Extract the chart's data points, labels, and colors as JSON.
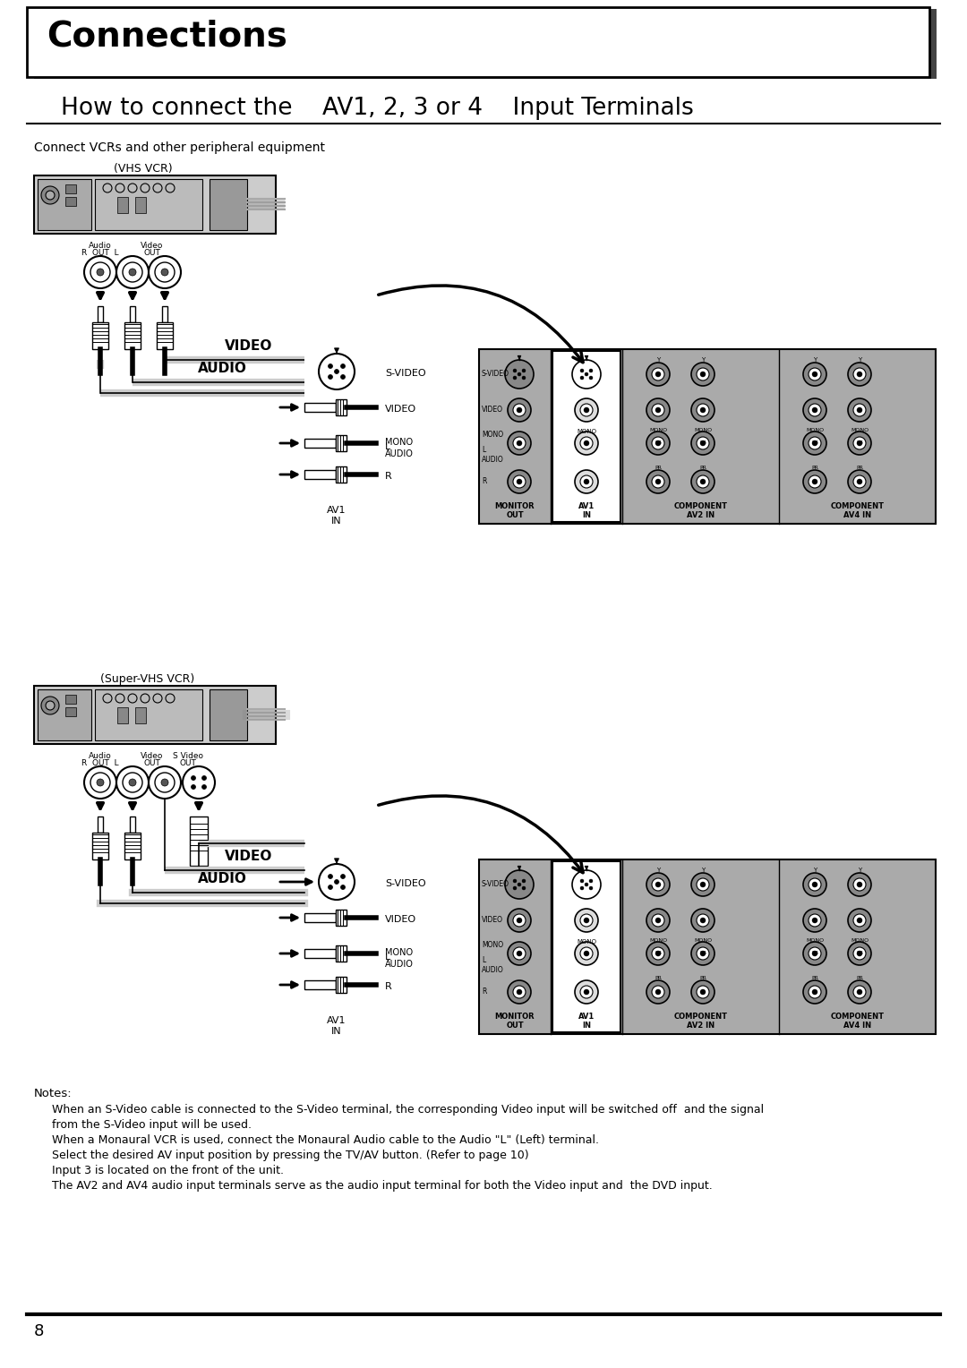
{
  "title_box_text": "Connections",
  "subtitle_text": "How to connect the    AV1, 2, 3 or 4    Input Terminals",
  "body_intro": "Connect VCRs and other peripheral equipment",
  "vcr1_label": "(VHS VCR)",
  "vcr2_label": "(Super-VHS VCR)",
  "video_label": "VIDEO",
  "audio_label": "AUDIO",
  "av1_in_label": "AV1\nIN",
  "svideo_label": "S-VIDEO",
  "video_conn_label": "VIDEO",
  "mono_label": "MONO",
  "notes_title": "Notes:",
  "notes": [
    "When an S-Video cable is connected to the S-Video terminal, the corresponding Video input will be switched off  and the signal",
    "from the S-Video input will be used.",
    "When a Monaural VCR is used, connect the Monaural Audio cable to the Audio \"L\" (Left) terminal.",
    "Select the desired AV input position by pressing the TV/AV button. (Refer to page 10)",
    "Input 3 is located on the front of the unit.",
    "The AV2 and AV4 audio input terminals serve as the audio input terminal for both the Video input and  the DVD input."
  ],
  "page_number": "8",
  "bg_color": "#ffffff"
}
